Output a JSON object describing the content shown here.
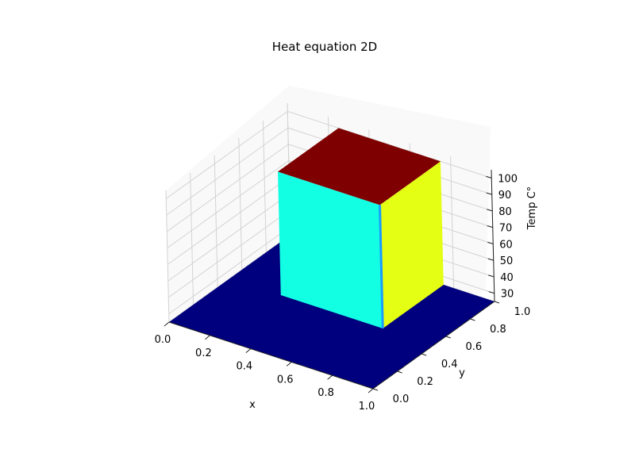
{
  "chart_data": {
    "type": "surface3d",
    "title": "Heat equation 2D",
    "xlabel": "x",
    "ylabel": "y",
    "zlabel": "Temp C°",
    "colormap": "jet",
    "xlim": [
      0.0,
      1.0
    ],
    "ylim": [
      0.0,
      1.0
    ],
    "zlim": [
      25,
      105
    ],
    "x_ticks": [
      "0.0",
      "0.2",
      "0.4",
      "0.6",
      "0.8",
      "1.0"
    ],
    "y_ticks": [
      "0.0",
      "0.2",
      "0.4",
      "0.6",
      "0.8",
      "1.0"
    ],
    "z_ticks": [
      "30",
      "40",
      "50",
      "60",
      "70",
      "80",
      "90",
      "100"
    ],
    "base_temperature": 25,
    "hot_region": {
      "x": [
        0.25,
        0.75
      ],
      "y": [
        0.5,
        1.0
      ],
      "temperature": 100
    },
    "face_colors": {
      "floor": "#00007f",
      "top": "#7f0000",
      "front": "#13ffe3",
      "right": "#e4ff13",
      "edge": "#1a9bff"
    },
    "grid": true
  }
}
